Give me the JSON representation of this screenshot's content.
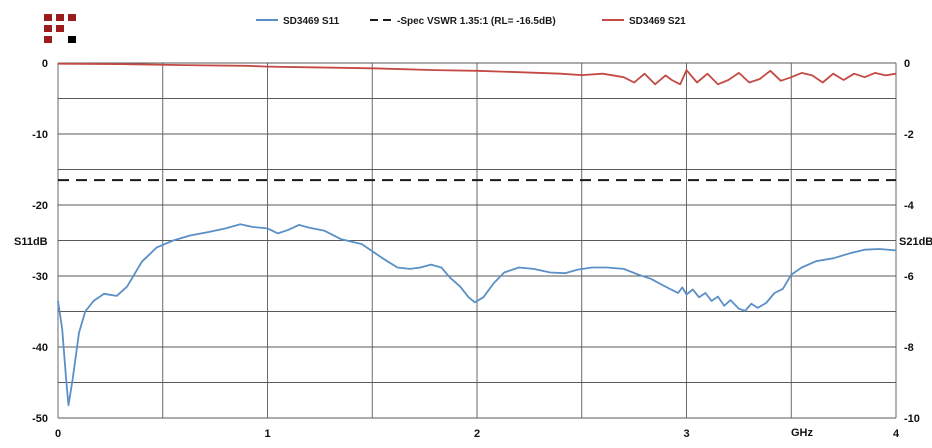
{
  "chart_data": {
    "type": "line",
    "title": "",
    "xlabel": "GHz",
    "ylabel_left": "S11dB",
    "ylabel_right": "S21dB",
    "xlim": [
      0,
      4
    ],
    "ylim_left": [
      -50,
      0
    ],
    "ylim_right": [
      -10,
      0
    ],
    "x_ticks": [
      "0",
      "1",
      "2",
      "3",
      "4"
    ],
    "y_ticks_left": [
      "0",
      "-10",
      "-20",
      "-30",
      "-40",
      "-50"
    ],
    "y_ticks_right": [
      "0",
      "-2",
      "-4",
      "-6",
      "-8",
      "-10"
    ],
    "grid": true,
    "legend_position": "top",
    "series": [
      {
        "name": "SD3469 S11",
        "axis": "left",
        "color": "#5b8fc7",
        "dash": "solid",
        "points": [
          [
            0.0,
            -33.5
          ],
          [
            0.02,
            -37.5
          ],
          [
            0.04,
            -45
          ],
          [
            0.05,
            -48.2
          ],
          [
            0.07,
            -44.5
          ],
          [
            0.1,
            -38
          ],
          [
            0.13,
            -35
          ],
          [
            0.17,
            -33.5
          ],
          [
            0.22,
            -32.5
          ],
          [
            0.28,
            -32.8
          ],
          [
            0.33,
            -31.5
          ],
          [
            0.4,
            -28
          ],
          [
            0.47,
            -26
          ],
          [
            0.55,
            -25
          ],
          [
            0.63,
            -24.3
          ],
          [
            0.72,
            -23.8
          ],
          [
            0.8,
            -23.3
          ],
          [
            0.87,
            -22.7
          ],
          [
            0.93,
            -23.1
          ],
          [
            1.0,
            -23.3
          ],
          [
            1.05,
            -24
          ],
          [
            1.1,
            -23.5
          ],
          [
            1.15,
            -22.8
          ],
          [
            1.2,
            -23.2
          ],
          [
            1.27,
            -23.6
          ],
          [
            1.35,
            -24.8
          ],
          [
            1.45,
            -25.5
          ],
          [
            1.55,
            -27.5
          ],
          [
            1.62,
            -28.8
          ],
          [
            1.68,
            -29
          ],
          [
            1.73,
            -28.8
          ],
          [
            1.78,
            -28.4
          ],
          [
            1.83,
            -28.8
          ],
          [
            1.87,
            -30.2
          ],
          [
            1.92,
            -31.5
          ],
          [
            1.96,
            -33
          ],
          [
            1.99,
            -33.7
          ],
          [
            2.03,
            -33
          ],
          [
            2.08,
            -31
          ],
          [
            2.13,
            -29.5
          ],
          [
            2.2,
            -28.8
          ],
          [
            2.27,
            -29
          ],
          [
            2.35,
            -29.5
          ],
          [
            2.42,
            -29.6
          ],
          [
            2.48,
            -29.1
          ],
          [
            2.55,
            -28.8
          ],
          [
            2.62,
            -28.8
          ],
          [
            2.7,
            -29
          ],
          [
            2.77,
            -29.8
          ],
          [
            2.83,
            -30.4
          ],
          [
            2.88,
            -31.2
          ],
          [
            2.92,
            -31.8
          ],
          [
            2.96,
            -32.4
          ],
          [
            2.98,
            -31.6
          ],
          [
            3.0,
            -32.6
          ],
          [
            3.03,
            -31.9
          ],
          [
            3.06,
            -33
          ],
          [
            3.09,
            -32.4
          ],
          [
            3.12,
            -33.5
          ],
          [
            3.15,
            -32.9
          ],
          [
            3.18,
            -34.2
          ],
          [
            3.21,
            -33.4
          ],
          [
            3.25,
            -34.6
          ],
          [
            3.28,
            -34.9
          ],
          [
            3.31,
            -33.9
          ],
          [
            3.34,
            -34.5
          ],
          [
            3.38,
            -33.8
          ],
          [
            3.42,
            -32.4
          ],
          [
            3.46,
            -31.8
          ],
          [
            3.5,
            -29.8
          ],
          [
            3.55,
            -28.8
          ],
          [
            3.62,
            -27.9
          ],
          [
            3.7,
            -27.5
          ],
          [
            3.78,
            -26.8
          ],
          [
            3.85,
            -26.3
          ],
          [
            3.92,
            -26.2
          ],
          [
            4.0,
            -26.4
          ]
        ]
      },
      {
        "name": "-Spec VSWR 1.35:1 (RL= -16.5dB)",
        "axis": "left",
        "color": "#1a1a1a",
        "dash": "dashed",
        "points": [
          [
            0.0,
            -16.5
          ],
          [
            4.0,
            -16.5
          ]
        ]
      },
      {
        "name": "SD3469 S21",
        "axis": "right",
        "color": "#c44a45",
        "dash": "solid",
        "points": [
          [
            0.0,
            -0.02
          ],
          [
            0.3,
            -0.03
          ],
          [
            0.6,
            -0.06
          ],
          [
            0.9,
            -0.08
          ],
          [
            1.0,
            -0.1
          ],
          [
            1.2,
            -0.12
          ],
          [
            1.5,
            -0.15
          ],
          [
            1.8,
            -0.2
          ],
          [
            2.0,
            -0.22
          ],
          [
            2.2,
            -0.26
          ],
          [
            2.4,
            -0.3
          ],
          [
            2.5,
            -0.34
          ],
          [
            2.6,
            -0.3
          ],
          [
            2.7,
            -0.4
          ],
          [
            2.75,
            -0.55
          ],
          [
            2.8,
            -0.3
          ],
          [
            2.85,
            -0.6
          ],
          [
            2.9,
            -0.35
          ],
          [
            2.93,
            -0.48
          ],
          [
            2.97,
            -0.6
          ],
          [
            3.0,
            -0.2
          ],
          [
            3.05,
            -0.55
          ],
          [
            3.1,
            -0.3
          ],
          [
            3.15,
            -0.6
          ],
          [
            3.2,
            -0.48
          ],
          [
            3.25,
            -0.28
          ],
          [
            3.3,
            -0.55
          ],
          [
            3.35,
            -0.45
          ],
          [
            3.4,
            -0.22
          ],
          [
            3.45,
            -0.5
          ],
          [
            3.5,
            -0.4
          ],
          [
            3.55,
            -0.28
          ],
          [
            3.6,
            -0.35
          ],
          [
            3.65,
            -0.55
          ],
          [
            3.7,
            -0.3
          ],
          [
            3.75,
            -0.48
          ],
          [
            3.8,
            -0.3
          ],
          [
            3.85,
            -0.4
          ],
          [
            3.9,
            -0.28
          ],
          [
            3.95,
            -0.35
          ],
          [
            4.0,
            -0.3
          ]
        ]
      }
    ]
  },
  "logo": {
    "colors": [
      "#9b1c1c",
      "#000000"
    ]
  }
}
